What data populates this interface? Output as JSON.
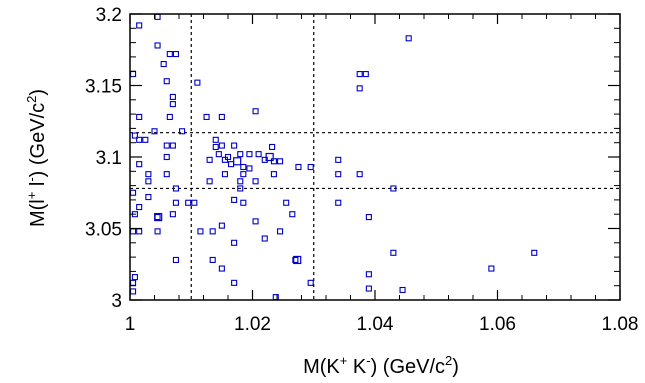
{
  "chart_data": {
    "type": "scatter",
    "title": "",
    "xlabel": {
      "pre": "M(K",
      "sup1": "+",
      "mid": " K",
      "sup2": "-",
      "post": ") (GeV/c",
      "sup3": "2",
      "end": ")"
    },
    "ylabel": {
      "pre": "M(l",
      "sup1": "+",
      "mid": " l",
      "sup2": "-",
      "post": ") (GeV/c",
      "sup3": "2",
      "end": ")"
    },
    "xlim": [
      1.0,
      1.08
    ],
    "ylim": [
      3.0,
      3.2
    ],
    "xticks": [
      {
        "value": 1.0,
        "label": "1"
      },
      {
        "value": 1.02,
        "label": "1.02"
      },
      {
        "value": 1.04,
        "label": "1.04"
      },
      {
        "value": 1.06,
        "label": "1.06"
      },
      {
        "value": 1.08,
        "label": "1.08"
      }
    ],
    "yticks": [
      {
        "value": 3.0,
        "label": "3"
      },
      {
        "value": 3.05,
        "label": "3.05"
      },
      {
        "value": 3.1,
        "label": "3.1"
      },
      {
        "value": 3.15,
        "label": "3.15"
      },
      {
        "value": 3.2,
        "label": "3.2"
      }
    ],
    "vlines": [
      1.01,
      1.03
    ],
    "hlines": [
      3.078,
      3.117
    ],
    "grid": false,
    "marker_color": "#0000cc",
    "points": [
      [
        1.0005,
        3.158
      ],
      [
        1.0008,
        3.115
      ],
      [
        1.0005,
        3.075
      ],
      [
        1.0008,
        3.06
      ],
      [
        1.0005,
        3.048
      ],
      [
        1.0008,
        3.016
      ],
      [
        1.0005,
        3.012
      ],
      [
        1.0005,
        3.006
      ],
      [
        1.0015,
        3.192
      ],
      [
        1.0015,
        3.128
      ],
      [
        1.0015,
        3.112
      ],
      [
        1.0015,
        3.095
      ],
      [
        1.0015,
        3.065
      ],
      [
        1.0015,
        3.048
      ],
      [
        1.0025,
        3.112
      ],
      [
        1.003,
        3.088
      ],
      [
        1.003,
        3.083
      ],
      [
        1.003,
        3.072
      ],
      [
        1.0045,
        3.198
      ],
      [
        1.0045,
        3.178
      ],
      [
        1.004,
        3.118
      ],
      [
        1.0045,
        3.058
      ],
      [
        1.0045,
        3.048
      ],
      [
        1.0055,
        3.165
      ],
      [
        1.006,
        3.153
      ],
      [
        1.006,
        3.108
      ],
      [
        1.006,
        3.1
      ],
      [
        1.006,
        3.088
      ],
      [
        1.0065,
        3.172
      ],
      [
        1.0075,
        3.172
      ],
      [
        1.007,
        3.142
      ],
      [
        1.007,
        3.137
      ],
      [
        1.0065,
        3.128
      ],
      [
        1.007,
        3.108
      ],
      [
        1.0075,
        3.078
      ],
      [
        1.0075,
        3.068
      ],
      [
        1.007,
        3.06
      ],
      [
        1.0075,
        3.028
      ],
      [
        1.0085,
        3.118
      ],
      [
        1.0095,
        3.068
      ],
      [
        1.0105,
        3.068
      ],
      [
        1.011,
        3.152
      ],
      [
        1.0115,
        3.048
      ],
      [
        1.0125,
        3.128
      ],
      [
        1.013,
        3.098
      ],
      [
        1.013,
        3.083
      ],
      [
        1.0135,
        3.048
      ],
      [
        1.0135,
        3.028
      ],
      [
        1.014,
        3.112
      ],
      [
        1.014,
        3.107
      ],
      [
        1.015,
        3.108
      ],
      [
        1.0145,
        3.102
      ],
      [
        1.0155,
        3.098
      ],
      [
        1.016,
        3.1
      ],
      [
        1.0155,
        3.088
      ],
      [
        1.015,
        3.052
      ],
      [
        1.015,
        3.022
      ],
      [
        1.015,
        3.128
      ],
      [
        1.017,
        3.108
      ],
      [
        1.0165,
        3.095
      ],
      [
        1.017,
        3.07
      ],
      [
        1.017,
        3.04
      ],
      [
        1.017,
        3.012
      ],
      [
        1.018,
        3.102
      ],
      [
        1.0185,
        3.093
      ],
      [
        1.0185,
        3.088
      ],
      [
        1.018,
        3.083
      ],
      [
        1.018,
        3.078
      ],
      [
        1.0185,
        3.068
      ],
      [
        1.0195,
        3.102
      ],
      [
        1.0195,
        3.092
      ],
      [
        1.0205,
        3.132
      ],
      [
        1.021,
        3.102
      ],
      [
        1.0205,
        3.083
      ],
      [
        1.0205,
        3.055
      ],
      [
        1.022,
        3.098
      ],
      [
        1.022,
        3.043
      ],
      [
        1.0232,
        3.107
      ],
      [
        1.0235,
        3.097
      ],
      [
        1.0245,
        3.097
      ],
      [
        1.0235,
        3.088
      ],
      [
        1.0245,
        3.048
      ],
      [
        1.0238,
        3.002
      ],
      [
        1.0255,
        3.068
      ],
      [
        1.0265,
        3.06
      ],
      [
        1.0275,
        3.093
      ],
      [
        1.027,
        3.028
      ],
      [
        1.0295,
        3.093
      ],
      [
        1.0295,
        3.012
      ],
      [
        1.034,
        3.098
      ],
      [
        1.034,
        3.088
      ],
      [
        1.034,
        3.068
      ],
      [
        1.0375,
        3.158
      ],
      [
        1.0375,
        3.148
      ],
      [
        1.0385,
        3.158
      ],
      [
        1.0375,
        3.088
      ],
      [
        1.039,
        3.058
      ],
      [
        1.039,
        3.018
      ],
      [
        1.039,
        3.008
      ],
      [
        1.043,
        3.078
      ],
      [
        1.043,
        3.033
      ],
      [
        1.0445,
        3.007
      ],
      [
        1.0455,
        3.183
      ],
      [
        1.059,
        3.022
      ],
      [
        1.066,
        3.033
      ]
    ],
    "large_points": [
      [
        1.0175,
        3.097
      ],
      [
        1.0228,
        3.1
      ],
      [
        1.0273,
        3.028
      ],
      [
        1.0046,
        3.058
      ]
    ]
  }
}
